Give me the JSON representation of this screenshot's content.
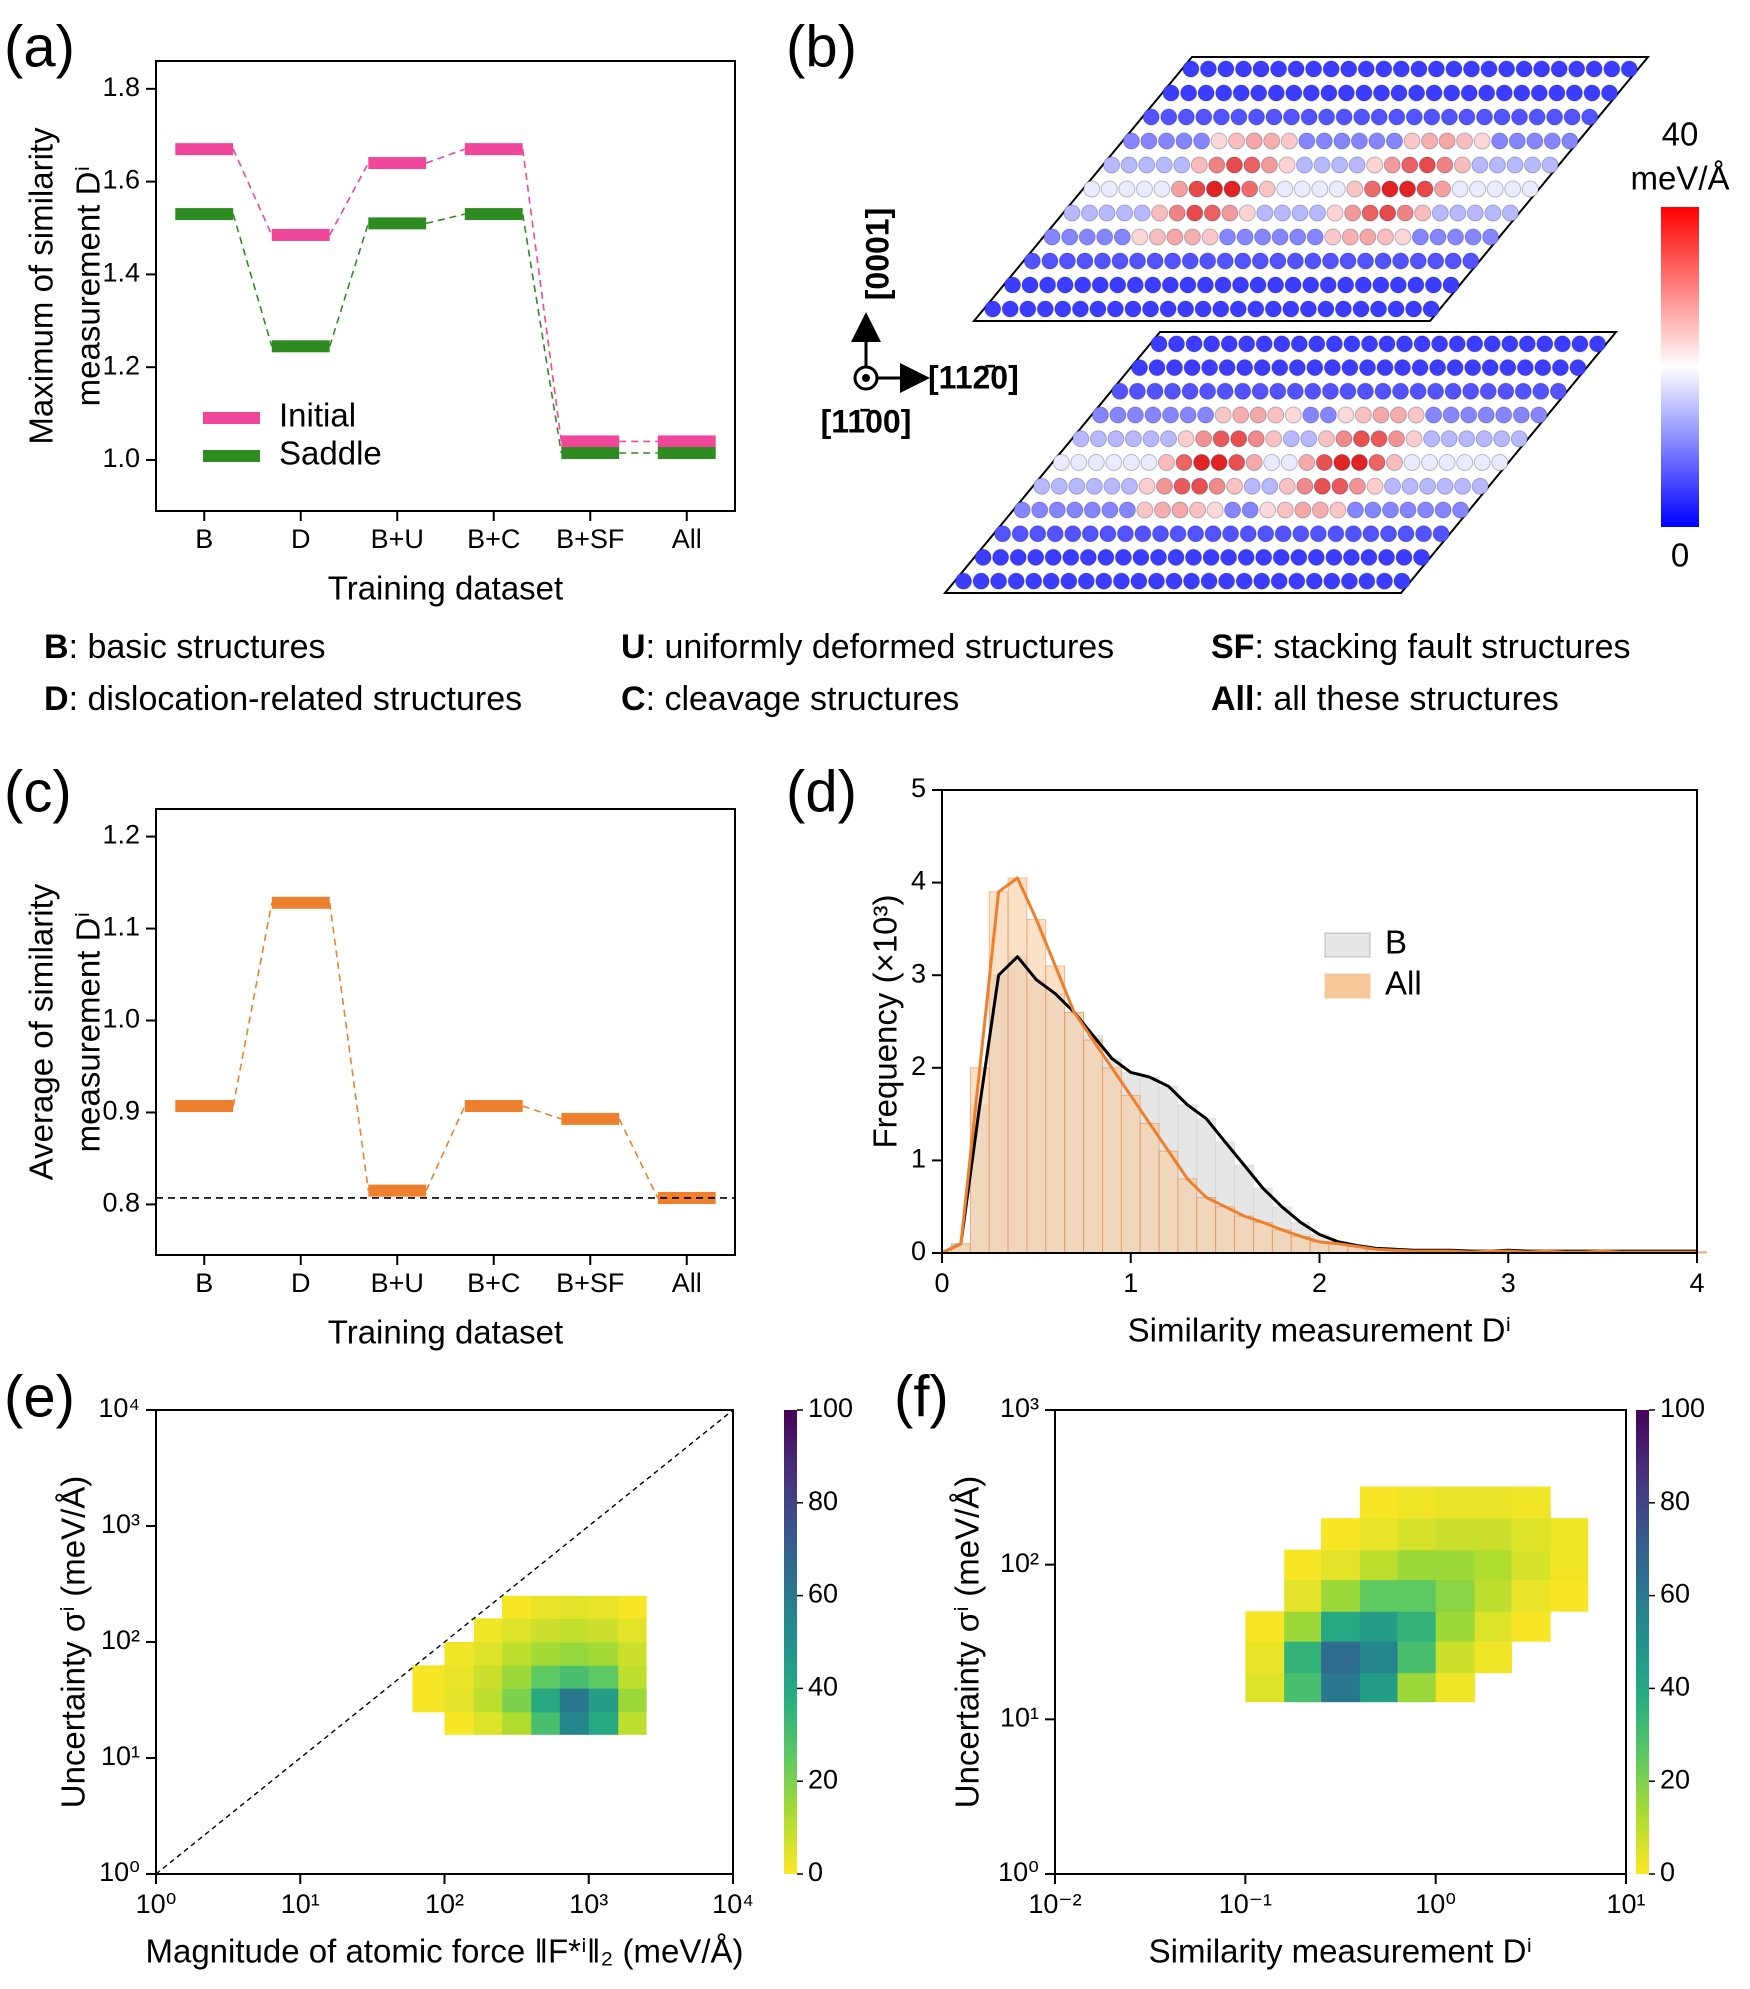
{
  "chart_data": [
    {
      "type": "level",
      "label": "(a)",
      "xlabel": "Training dataset",
      "ylabel": [
        "Maximum of similarity",
        "measurement Dⁱ"
      ],
      "categories": [
        "B",
        "D",
        "B+U",
        "B+C",
        "B+SF",
        "All"
      ],
      "series": [
        {
          "name": "Initial",
          "color": "#f0479a",
          "values": [
            1.67,
            1.485,
            1.64,
            1.67,
            1.04,
            1.04
          ]
        },
        {
          "name": "Saddle",
          "color": "#2e8b22",
          "values": [
            1.53,
            1.245,
            1.51,
            1.53,
            1.015,
            1.015
          ]
        }
      ],
      "ylim": [
        0.89,
        1.86
      ],
      "yticks": [
        {
          "value": 1,
          "label": "1.0"
        },
        1.2,
        1.4,
        1.6,
        1.8
      ],
      "legend": "lower left"
    },
    {
      "type": "level",
      "label": "(c)",
      "xlabel": "Training dataset",
      "ylabel": [
        "Average of similarity",
        "measurement Dⁱ"
      ],
      "categories": [
        "B",
        "D",
        "B+U",
        "B+C",
        "B+SF",
        "All"
      ],
      "series": [
        {
          "color": "#ee7f2d",
          "values": [
            0.907,
            1.128,
            0.815,
            0.907,
            0.893,
            0.807
          ]
        }
      ],
      "reference_line": 0.807,
      "ylim": [
        0.745,
        1.23
      ],
      "yticks": [
        0.8,
        0.9,
        {
          "value": 1,
          "label": "1.0"
        },
        1.1,
        1.2
      ]
    },
    {
      "type": "area",
      "label": "(d)",
      "xlabel": "Similarity measurement Dⁱ",
      "ylabel": "Frequency (×10³)",
      "x": [
        0,
        0.1,
        0.2,
        0.3,
        0.4,
        0.5,
        0.6,
        0.7,
        0.8,
        0.9,
        1,
        1.1,
        1.2,
        1.3,
        1.4,
        1.5,
        1.6,
        1.7,
        1.8,
        1.9,
        2,
        2.1,
        2.2,
        2.3,
        2.4,
        2.5,
        2.6,
        2.7,
        2.8,
        2.9,
        3,
        3.1,
        3.2,
        3.3,
        3.4,
        3.5,
        3.6,
        3.7,
        3.8,
        3.9,
        4
      ],
      "series": [
        {
          "name": "B",
          "color": "#000000",
          "fill": "#e6e6e6",
          "values": [
            0,
            0.1,
            1.6,
            3.0,
            3.2,
            2.95,
            2.8,
            2.6,
            2.35,
            2.1,
            1.95,
            1.9,
            1.8,
            1.6,
            1.45,
            1.2,
            0.95,
            0.7,
            0.5,
            0.33,
            0.2,
            0.12,
            0.08,
            0.05,
            0.04,
            0.03,
            0.03,
            0.03,
            0.02,
            0.02,
            0.03,
            0.02,
            0.02,
            0.02,
            0.02,
            0.02,
            0.02,
            0.02,
            0.02,
            0.02,
            0.02
          ]
        },
        {
          "name": "All",
          "color": "#ee7f2d",
          "fill": "#f5c89a",
          "values": [
            0,
            0.1,
            2.0,
            3.9,
            4.05,
            3.6,
            3.1,
            2.6,
            2.3,
            2.0,
            1.7,
            1.4,
            1.1,
            0.8,
            0.6,
            0.5,
            0.4,
            0.33,
            0.25,
            0.18,
            0.12,
            0.1,
            0.07,
            0.04,
            0.03,
            0.02,
            0.02,
            0.02,
            0.01,
            0.02,
            0.02,
            0.01,
            0.02,
            0.01,
            0.01,
            0.02,
            0.01,
            0.01,
            0.01,
            0.01,
            0.01
          ]
        }
      ],
      "xlim": [
        0,
        4
      ],
      "xticks": [
        0,
        1,
        2,
        3,
        4
      ],
      "ylim": [
        0,
        5
      ],
      "yticks": [
        0,
        1,
        2,
        3,
        4,
        5
      ],
      "legend": "upper center"
    },
    {
      "type": "heatmap",
      "label": "(e)",
      "xlabel": "Magnitude of atomic force ‖F*ⁱ‖₂ (meV/Å)",
      "ylabel": "Uncertainty σⁱ (meV/Å)",
      "xscale": "log",
      "yscale": "log",
      "diagonal": true,
      "xlim": [
        1,
        10000
      ],
      "xticks": [
        {
          "value": 1,
          "label": "10⁰"
        },
        {
          "value": 10,
          "label": "10¹"
        },
        {
          "value": 100,
          "label": "10²"
        },
        {
          "value": 1000,
          "label": "10³"
        },
        {
          "value": 10000,
          "label": "10⁴"
        }
      ],
      "ylim": [
        1,
        10000
      ],
      "yticks": [
        {
          "value": 1,
          "label": "10⁰"
        },
        {
          "value": 10,
          "label": "10¹"
        },
        {
          "value": 100,
          "label": "10²"
        },
        {
          "value": 1000,
          "label": "10³"
        },
        {
          "value": 10000,
          "label": "10⁴"
        }
      ],
      "x_edges": [
        60,
        100,
        160,
        250,
        400,
        630,
        1000,
        1600,
        2500
      ],
      "y_edges": [
        16,
        25,
        40,
        63,
        100,
        160,
        250
      ],
      "counts": [
        [
          0,
          1,
          5,
          12,
          30,
          55,
          40,
          10
        ],
        [
          1,
          4,
          10,
          20,
          40,
          60,
          45,
          15
        ],
        [
          1,
          3,
          8,
          15,
          25,
          30,
          25,
          10
        ],
        [
          0,
          2,
          5,
          10,
          14,
          16,
          14,
          8
        ],
        [
          0,
          0,
          2,
          5,
          8,
          9,
          8,
          4
        ],
        [
          0,
          0,
          0,
          1,
          3,
          4,
          3,
          1
        ]
      ],
      "colormap": "viridis_r",
      "clim": [
        0,
        100
      ],
      "cticks": [
        0,
        20,
        40,
        60,
        80,
        100
      ]
    },
    {
      "type": "heatmap",
      "label": "(f)",
      "xlabel": "Similarity measurement Dⁱ",
      "ylabel": "Uncertainty σⁱ (meV/Å)",
      "xscale": "log",
      "yscale": "log",
      "xlim": [
        0.01,
        10
      ],
      "xticks": [
        {
          "value": 0.01,
          "label": "10⁻²"
        },
        {
          "value": 0.1,
          "label": "10⁻¹"
        },
        {
          "value": 1,
          "label": "10⁰"
        },
        {
          "value": 10,
          "label": "10¹"
        }
      ],
      "ylim": [
        1,
        1000
      ],
      "yticks": [
        {
          "value": 1,
          "label": "10⁰"
        },
        {
          "value": 10,
          "label": "10¹"
        },
        {
          "value": 100,
          "label": "10²"
        },
        {
          "value": 1000,
          "label": "10³"
        }
      ],
      "x_edges": [
        0.1,
        0.16,
        0.25,
        0.4,
        0.63,
        1,
        1.6,
        2.5,
        4,
        6.3
      ],
      "y_edges": [
        13,
        20,
        32,
        50,
        80,
        125,
        200,
        320
      ],
      "counts": [
        [
          5,
          30,
          60,
          45,
          15,
          2,
          0,
          0,
          0
        ],
        [
          3,
          35,
          65,
          55,
          30,
          8,
          2,
          0,
          0
        ],
        [
          1,
          15,
          40,
          45,
          35,
          15,
          5,
          1,
          0
        ],
        [
          0,
          4,
          15,
          25,
          25,
          18,
          10,
          3,
          1
        ],
        [
          0,
          1,
          4,
          10,
          15,
          15,
          12,
          6,
          2
        ],
        [
          0,
          0,
          1,
          3,
          6,
          8,
          8,
          5,
          2
        ],
        [
          0,
          0,
          0,
          1,
          2,
          3,
          3,
          2,
          0
        ]
      ],
      "colormap": "viridis_r",
      "clim": [
        0,
        100
      ],
      "cticks": [
        0,
        20,
        40,
        60,
        80,
        100
      ]
    }
  ],
  "panel_b": {
    "label": "(b)",
    "axis_up": "[0001]",
    "axis_right": "[112̄0]",
    "axis_out": "[11̄00]",
    "colorbar": {
      "unit": "meV/Å",
      "clim": [
        0,
        40
      ],
      "ticks": [
        0,
        40
      ]
    }
  },
  "notes": [
    [
      {
        "key": "B",
        "text": ": basic structures"
      },
      {
        "key": "U",
        "text": ": uniformly deformed structures"
      },
      {
        "key": "SF",
        "text": ": stacking fault structures"
      }
    ],
    [
      {
        "key": "D",
        "text": ": dislocation-related structures"
      },
      {
        "key": "C",
        "text": ": cleavage structures"
      },
      {
        "key": "All",
        "text": ": all these structures"
      }
    ]
  ]
}
